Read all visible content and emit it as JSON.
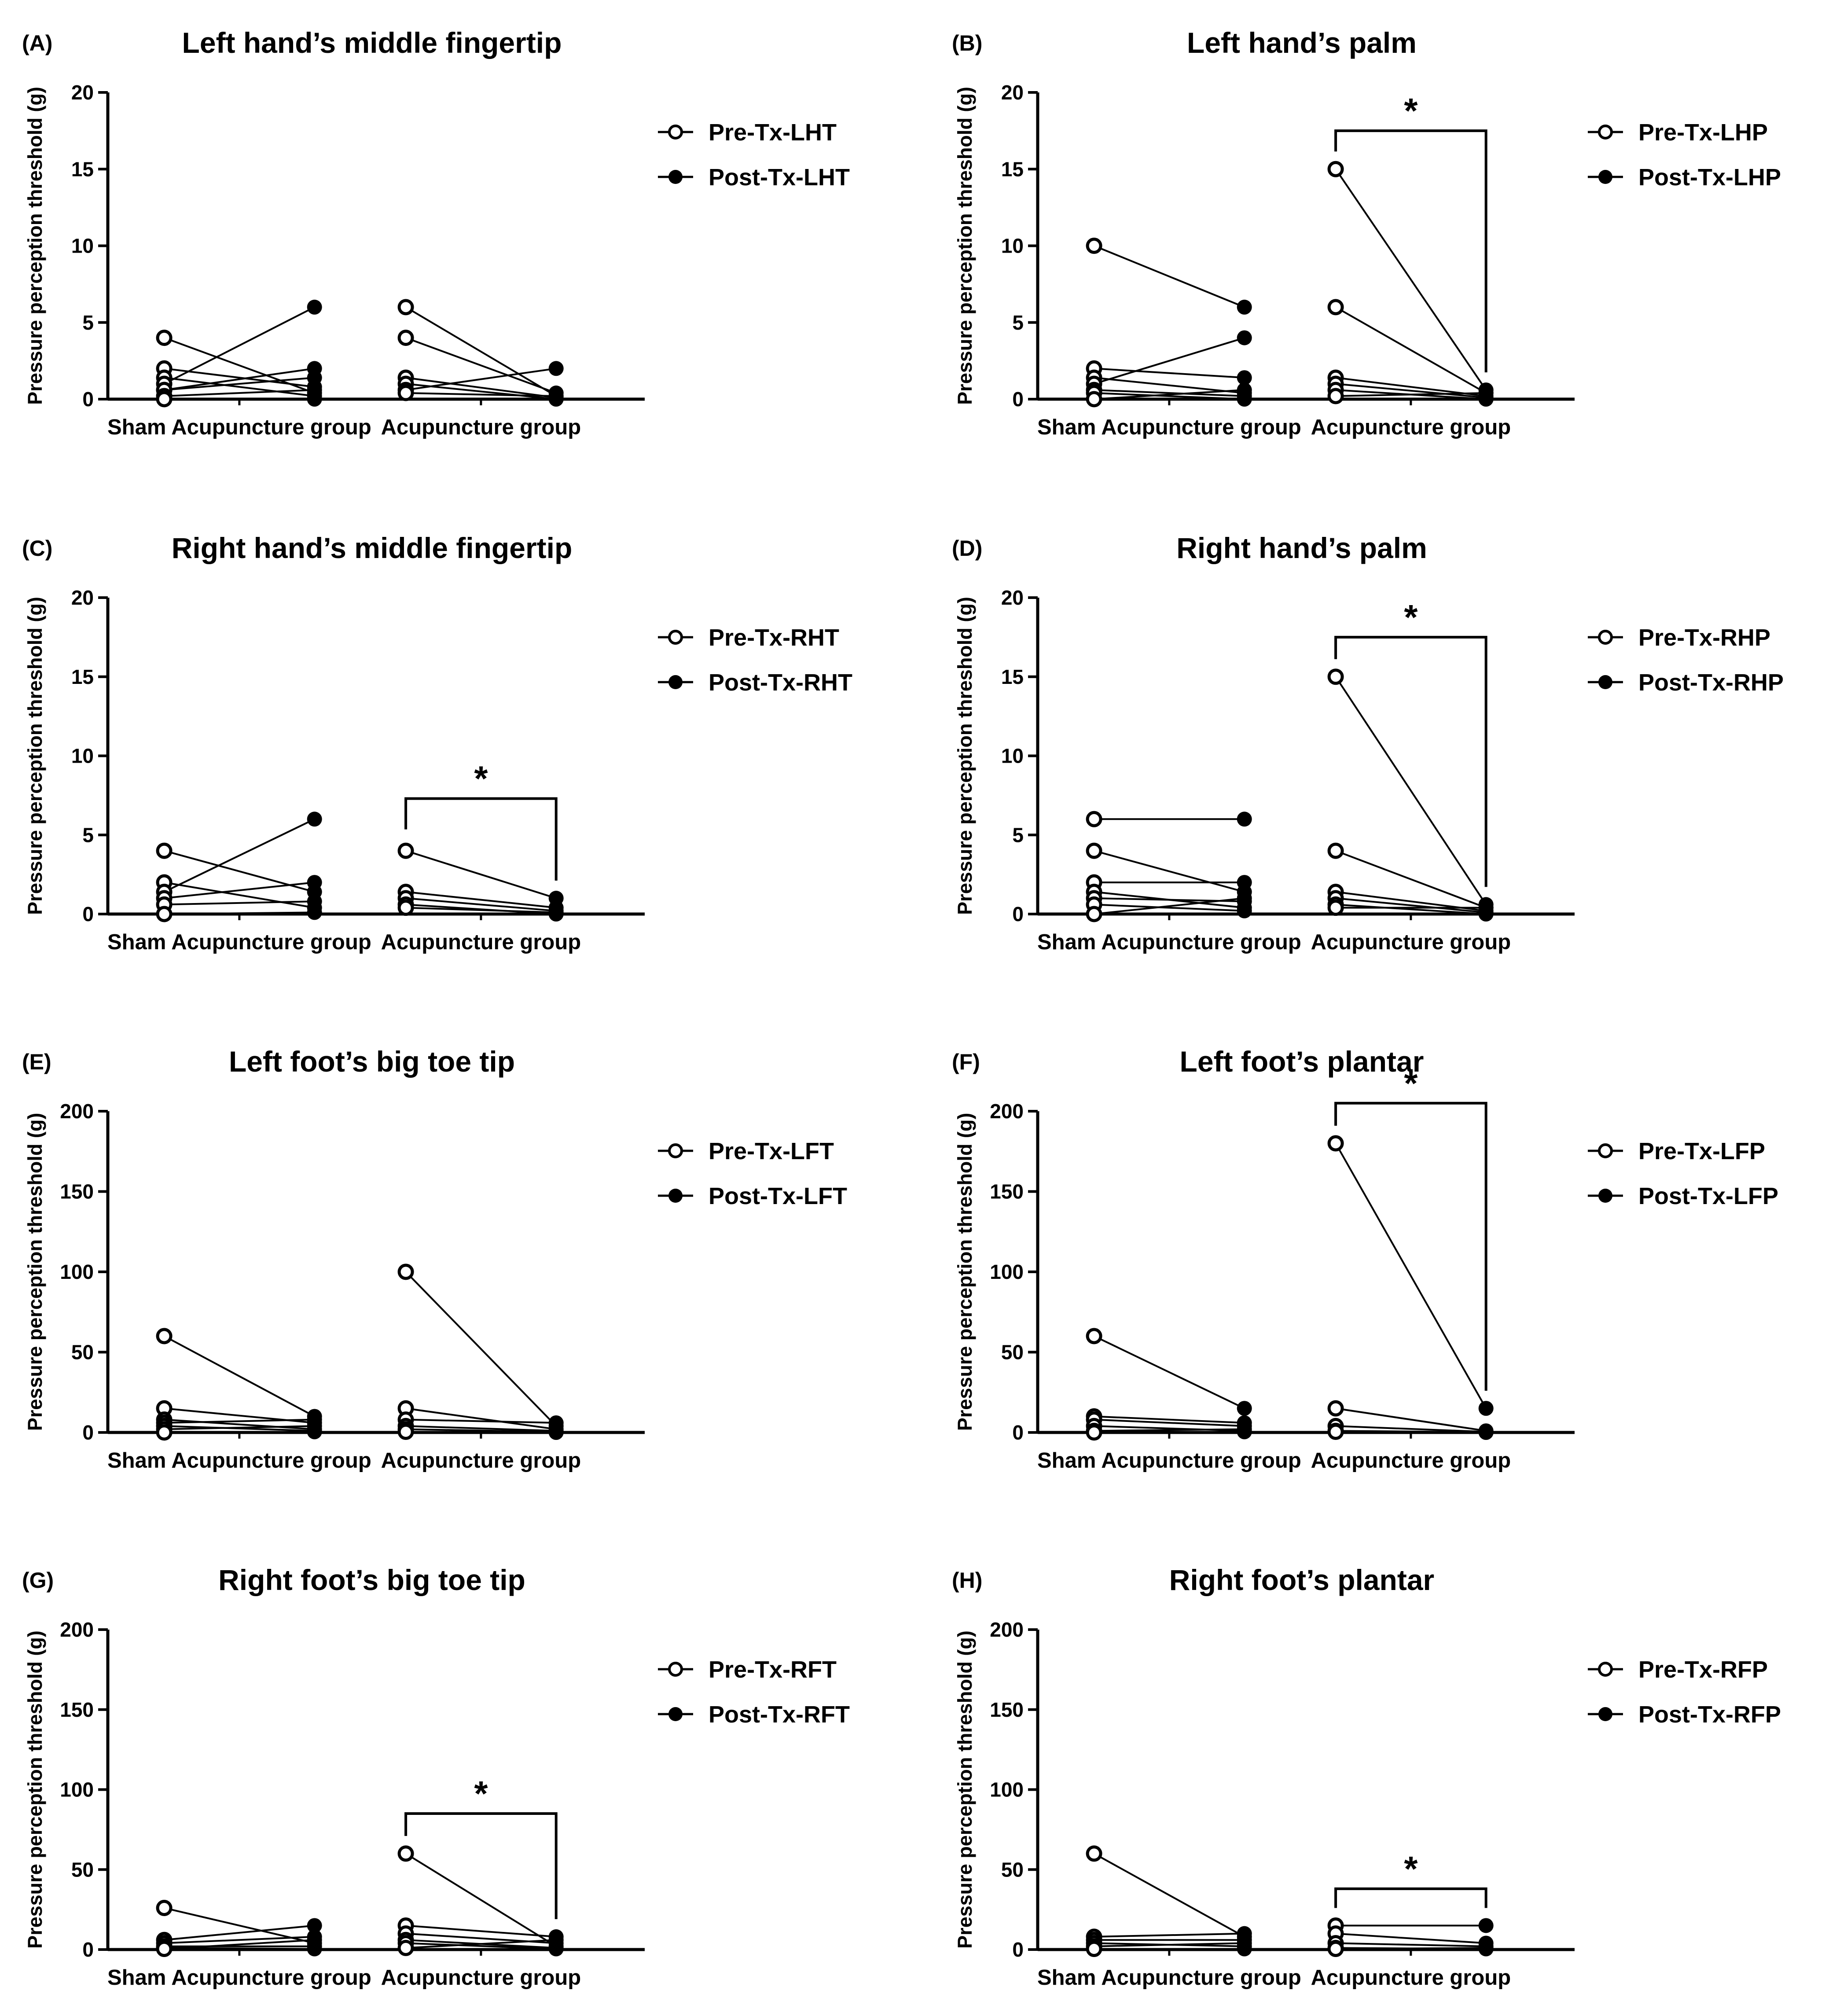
{
  "chart_data": [
    {
      "panel": "(A)",
      "title": "Left hand’s middle fingertip",
      "type": "line",
      "ylabel": "Pressure perception threshold (g)",
      "ylim": [
        0,
        20
      ],
      "yticks": [
        0,
        5,
        10,
        15,
        20
      ],
      "categories": [
        "Sham Acupuncture group",
        "Acupuncture group"
      ],
      "series": [
        {
          "name": "Pre-Tx-LHT",
          "marker": "open-circle"
        },
        {
          "name": "Post-Tx-LHT",
          "marker": "filled-circle"
        }
      ],
      "pairs": [
        {
          "group": "Sham Acupuncture group",
          "pre": 4,
          "post": 0.4
        },
        {
          "group": "Sham Acupuncture group",
          "pre": 2,
          "post": 0.8
        },
        {
          "group": "Sham Acupuncture group",
          "pre": 1.4,
          "post": 0.2
        },
        {
          "group": "Sham Acupuncture group",
          "pre": 1,
          "post": 6
        },
        {
          "group": "Sham Acupuncture group",
          "pre": 0.6,
          "post": 2
        },
        {
          "group": "Sham Acupuncture group",
          "pre": 0.6,
          "post": 1.4
        },
        {
          "group": "Sham Acupuncture group",
          "pre": 0.2,
          "post": 0.6
        },
        {
          "group": "Sham Acupuncture group",
          "pre": 0,
          "post": 0
        },
        {
          "group": "Acupuncture group",
          "pre": 6,
          "post": 0.2
        },
        {
          "group": "Acupuncture group",
          "pre": 4,
          "post": 0.4
        },
        {
          "group": "Acupuncture group",
          "pre": 1.4,
          "post": 0.1
        },
        {
          "group": "Acupuncture group",
          "pre": 1,
          "post": 0
        },
        {
          "group": "Acupuncture group",
          "pre": 0.6,
          "post": 2
        },
        {
          "group": "Acupuncture group",
          "pre": 0.4,
          "post": 0.2
        }
      ],
      "significance": null
    },
    {
      "panel": "(B)",
      "title": "Left hand’s palm",
      "type": "line",
      "ylabel": "Pressure perception threshold (g)",
      "ylim": [
        0,
        20
      ],
      "yticks": [
        0,
        5,
        10,
        15,
        20
      ],
      "categories": [
        "Sham Acupuncture group",
        "Acupuncture group"
      ],
      "series": [
        {
          "name": "Pre-Tx-LHP",
          "marker": "open-circle"
        },
        {
          "name": "Post-Tx-LHP",
          "marker": "filled-circle"
        }
      ],
      "pairs": [
        {
          "group": "Sham Acupuncture group",
          "pre": 10,
          "post": 6
        },
        {
          "group": "Sham Acupuncture group",
          "pre": 2,
          "post": 1.4
        },
        {
          "group": "Sham Acupuncture group",
          "pre": 1.4,
          "post": 0.4
        },
        {
          "group": "Sham Acupuncture group",
          "pre": 1,
          "post": 4
        },
        {
          "group": "Sham Acupuncture group",
          "pre": 0.6,
          "post": 0.2
        },
        {
          "group": "Sham Acupuncture group",
          "pre": 0.4,
          "post": 0
        },
        {
          "group": "Sham Acupuncture group",
          "pre": 0,
          "post": 0.6
        },
        {
          "group": "Acupuncture group",
          "pre": 15,
          "post": 0.6
        },
        {
          "group": "Acupuncture group",
          "pre": 6,
          "post": 0.4
        },
        {
          "group": "Acupuncture group",
          "pre": 1.4,
          "post": 0.2
        },
        {
          "group": "Acupuncture group",
          "pre": 1,
          "post": 0.1
        },
        {
          "group": "Acupuncture group",
          "pre": 0.6,
          "post": 0
        },
        {
          "group": "Acupuncture group",
          "pre": 0.2,
          "post": 0.4
        }
      ],
      "significance": {
        "group": "Acupuncture group",
        "label": "*",
        "bracket_y": 17.5
      }
    },
    {
      "panel": "(C)",
      "title": "Right hand’s middle fingertip",
      "type": "line",
      "ylabel": "Pressure perception threshold (g)",
      "ylim": [
        0,
        20
      ],
      "yticks": [
        0,
        5,
        10,
        15,
        20
      ],
      "categories": [
        "Sham Acupuncture group",
        "Acupuncture group"
      ],
      "series": [
        {
          "name": "Pre-Tx-RHT",
          "marker": "open-circle"
        },
        {
          "name": "Post-Tx-RHT",
          "marker": "filled-circle"
        }
      ],
      "pairs": [
        {
          "group": "Sham Acupuncture group",
          "pre": 4,
          "post": 1.4
        },
        {
          "group": "Sham Acupuncture group",
          "pre": 2,
          "post": 0.4
        },
        {
          "group": "Sham Acupuncture group",
          "pre": 1.4,
          "post": 6
        },
        {
          "group": "Sham Acupuncture group",
          "pre": 1,
          "post": 2
        },
        {
          "group": "Sham Acupuncture group",
          "pre": 0.6,
          "post": 0.8
        },
        {
          "group": "Sham Acupuncture group",
          "pre": 0,
          "post": 0.1
        },
        {
          "group": "Acupuncture group",
          "pre": 4,
          "post": 1
        },
        {
          "group": "Acupuncture group",
          "pre": 1.4,
          "post": 0.4
        },
        {
          "group": "Acupuncture group",
          "pre": 1,
          "post": 0.2
        },
        {
          "group": "Acupuncture group",
          "pre": 0.6,
          "post": 0
        },
        {
          "group": "Acupuncture group",
          "pre": 0.4,
          "post": 0.1
        }
      ],
      "significance": {
        "group": "Acupuncture group",
        "label": "*",
        "bracket_y": 7.3
      }
    },
    {
      "panel": "(D)",
      "title": "Right hand’s palm",
      "type": "line",
      "ylabel": "Pressure perception threshold (g)",
      "ylim": [
        0,
        20
      ],
      "yticks": [
        0,
        5,
        10,
        15,
        20
      ],
      "categories": [
        "Sham Acupuncture group",
        "Acupuncture group"
      ],
      "series": [
        {
          "name": "Pre-Tx-RHP",
          "marker": "open-circle"
        },
        {
          "name": "Post-Tx-RHP",
          "marker": "filled-circle"
        }
      ],
      "pairs": [
        {
          "group": "Sham Acupuncture group",
          "pre": 6,
          "post": 6
        },
        {
          "group": "Sham Acupuncture group",
          "pre": 4,
          "post": 1.4
        },
        {
          "group": "Sham Acupuncture group",
          "pre": 2,
          "post": 2
        },
        {
          "group": "Sham Acupuncture group",
          "pre": 1.4,
          "post": 0.4
        },
        {
          "group": "Sham Acupuncture group",
          "pre": 1,
          "post": 0.8
        },
        {
          "group": "Sham Acupuncture group",
          "pre": 0.6,
          "post": 0.2
        },
        {
          "group": "Sham Acupuncture group",
          "pre": 0,
          "post": 1
        },
        {
          "group": "Acupuncture group",
          "pre": 15,
          "post": 0.6
        },
        {
          "group": "Acupuncture group",
          "pre": 4,
          "post": 0.4
        },
        {
          "group": "Acupuncture group",
          "pre": 1.4,
          "post": 0.2
        },
        {
          "group": "Acupuncture group",
          "pre": 1,
          "post": 0.1
        },
        {
          "group": "Acupuncture group",
          "pre": 0.6,
          "post": 0
        },
        {
          "group": "Acupuncture group",
          "pre": 0.4,
          "post": 0.4
        }
      ],
      "significance": {
        "group": "Acupuncture group",
        "label": "*",
        "bracket_y": 17.5
      }
    },
    {
      "panel": "(E)",
      "title": "Left foot’s big toe tip",
      "type": "line",
      "ylabel": "Pressure perception threshold (g)",
      "ylim": [
        0,
        200
      ],
      "yticks": [
        0,
        50,
        100,
        150,
        200
      ],
      "categories": [
        "Sham Acupuncture group",
        "Acupuncture group"
      ],
      "series": [
        {
          "name": "Pre-Tx-LFT",
          "marker": "open-circle"
        },
        {
          "name": "Post-Tx-LFT",
          "marker": "filled-circle"
        }
      ],
      "pairs": [
        {
          "group": "Sham Acupuncture group",
          "pre": 60,
          "post": 10
        },
        {
          "group": "Sham Acupuncture group",
          "pre": 15,
          "post": 6
        },
        {
          "group": "Sham Acupuncture group",
          "pre": 8,
          "post": 2
        },
        {
          "group": "Sham Acupuncture group",
          "pre": 6,
          "post": 8
        },
        {
          "group": "Sham Acupuncture group",
          "pre": 4,
          "post": 1
        },
        {
          "group": "Sham Acupuncture group",
          "pre": 2,
          "post": 4
        },
        {
          "group": "Sham Acupuncture group",
          "pre": 0,
          "post": 0.4
        },
        {
          "group": "Acupuncture group",
          "pre": 100,
          "post": 4
        },
        {
          "group": "Acupuncture group",
          "pre": 15,
          "post": 2
        },
        {
          "group": "Acupuncture group",
          "pre": 8,
          "post": 6
        },
        {
          "group": "Acupuncture group",
          "pre": 4,
          "post": 1
        },
        {
          "group": "Acupuncture group",
          "pre": 2,
          "post": 0.4
        },
        {
          "group": "Acupuncture group",
          "pre": 0.4,
          "post": 0
        }
      ],
      "significance": null
    },
    {
      "panel": "(F)",
      "title": "Left foot’s plantar",
      "type": "line",
      "ylabel": "Pressure perception threshold (g)",
      "ylim": [
        0,
        200
      ],
      "yticks": [
        0,
        50,
        100,
        150,
        200
      ],
      "categories": [
        "Sham Acupuncture group",
        "Acupuncture group"
      ],
      "series": [
        {
          "name": "Pre-Tx-LFP",
          "marker": "open-circle"
        },
        {
          "name": "Post-Tx-LFP",
          "marker": "filled-circle"
        }
      ],
      "pairs": [
        {
          "group": "Sham Acupuncture group",
          "pre": 60,
          "post": 15
        },
        {
          "group": "Sham Acupuncture group",
          "pre": 10,
          "post": 6
        },
        {
          "group": "Sham Acupuncture group",
          "pre": 8,
          "post": 4
        },
        {
          "group": "Sham Acupuncture group",
          "pre": 4,
          "post": 1
        },
        {
          "group": "Sham Acupuncture group",
          "pre": 1,
          "post": 2
        },
        {
          "group": "Sham Acupuncture group",
          "pre": 0,
          "post": 0.4
        },
        {
          "group": "Acupuncture group",
          "pre": 180,
          "post": 15
        },
        {
          "group": "Acupuncture group",
          "pre": 15,
          "post": 1
        },
        {
          "group": "Acupuncture group",
          "pre": 4,
          "post": 0.4
        },
        {
          "group": "Acupuncture group",
          "pre": 1,
          "post": 0.2
        },
        {
          "group": "Acupuncture group",
          "pre": 0.4,
          "post": 0
        }
      ],
      "significance": {
        "group": "Acupuncture group",
        "label": "*",
        "bracket_y": 205
      }
    },
    {
      "panel": "(G)",
      "title": "Right foot’s big toe tip",
      "type": "line",
      "ylabel": "Pressure perception threshold (g)",
      "ylim": [
        0,
        200
      ],
      "yticks": [
        0,
        50,
        100,
        150,
        200
      ],
      "categories": [
        "Sham Acupuncture group",
        "Acupuncture group"
      ],
      "series": [
        {
          "name": "Pre-Tx-RFT",
          "marker": "open-circle"
        },
        {
          "name": "Post-Tx-RFT",
          "marker": "filled-circle"
        }
      ],
      "pairs": [
        {
          "group": "Sham Acupuncture group",
          "pre": 26,
          "post": 4
        },
        {
          "group": "Sham Acupuncture group",
          "pre": 6,
          "post": 15
        },
        {
          "group": "Sham Acupuncture group",
          "pre": 4,
          "post": 8
        },
        {
          "group": "Sham Acupuncture group",
          "pre": 2,
          "post": 2
        },
        {
          "group": "Sham Acupuncture group",
          "pre": 1,
          "post": 0.4
        },
        {
          "group": "Sham Acupuncture group",
          "pre": 0.4,
          "post": 6
        },
        {
          "group": "Acupuncture group",
          "pre": 60,
          "post": 2
        },
        {
          "group": "Acupuncture group",
          "pre": 15,
          "post": 8
        },
        {
          "group": "Acupuncture group",
          "pre": 10,
          "post": 4
        },
        {
          "group": "Acupuncture group",
          "pre": 6,
          "post": 1
        },
        {
          "group": "Acupuncture group",
          "pre": 4,
          "post": 0.4
        },
        {
          "group": "Acupuncture group",
          "pre": 1,
          "post": 6
        }
      ],
      "significance": {
        "group": "Acupuncture group",
        "label": "*",
        "bracket_y": 85
      }
    },
    {
      "panel": "(H)",
      "title": "Right foot’s plantar",
      "type": "line",
      "ylabel": "Pressure perception threshold (g)",
      "ylim": [
        0,
        200
      ],
      "yticks": [
        0,
        50,
        100,
        150,
        200
      ],
      "categories": [
        "Sham Acupuncture group",
        "Acupuncture group"
      ],
      "series": [
        {
          "name": "Pre-Tx-RFP",
          "marker": "open-circle"
        },
        {
          "name": "Post-Tx-RFP",
          "marker": "filled-circle"
        }
      ],
      "pairs": [
        {
          "group": "Sham Acupuncture group",
          "pre": 60,
          "post": 8
        },
        {
          "group": "Sham Acupuncture group",
          "pre": 8,
          "post": 10
        },
        {
          "group": "Sham Acupuncture group",
          "pre": 6,
          "post": 6
        },
        {
          "group": "Sham Acupuncture group",
          "pre": 4,
          "post": 2
        },
        {
          "group": "Sham Acupuncture group",
          "pre": 2,
          "post": 4
        },
        {
          "group": "Sham Acupuncture group",
          "pre": 0.4,
          "post": 0.4
        },
        {
          "group": "Acupuncture group",
          "pre": 15,
          "post": 15
        },
        {
          "group": "Acupuncture group",
          "pre": 10,
          "post": 4
        },
        {
          "group": "Acupuncture group",
          "pre": 4,
          "post": 2
        },
        {
          "group": "Acupuncture group",
          "pre": 1,
          "post": 0.4
        },
        {
          "group": "Acupuncture group",
          "pre": 0.4,
          "post": 1
        }
      ],
      "significance": {
        "group": "Acupuncture group",
        "label": "*",
        "bracket_y": 38
      }
    }
  ]
}
